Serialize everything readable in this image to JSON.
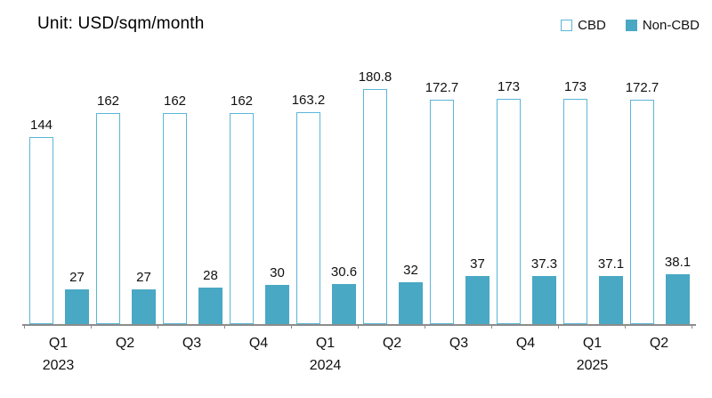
{
  "header": {
    "unit_label": "Unit: USD/sqm/month"
  },
  "legend": {
    "items": [
      {
        "label": "CBD",
        "swatch": "outline"
      },
      {
        "label": "Non-CBD",
        "swatch": "fill"
      }
    ]
  },
  "colors": {
    "bar_fill": "#49A8C4",
    "bar_outline": "#5AB6D8",
    "axis": "#8C8C8C",
    "text": "#111111"
  },
  "chart_data": {
    "type": "bar",
    "title": "",
    "unit": "USD/sqm/month",
    "categories": [
      "Q1",
      "Q2",
      "Q3",
      "Q4",
      "Q1",
      "Q2",
      "Q3",
      "Q4",
      "Q1",
      "Q2"
    ],
    "year_labels": [
      "2023",
      null,
      null,
      null,
      "2024",
      null,
      null,
      null,
      "2025",
      null
    ],
    "series": [
      {
        "name": "CBD",
        "style": "outline",
        "values": [
          144,
          162,
          162,
          162,
          163.2,
          180.8,
          172.7,
          173,
          173,
          172.7
        ]
      },
      {
        "name": "Non-CBD",
        "style": "fill",
        "values": [
          27,
          27,
          28,
          30,
          30.6,
          32,
          37,
          37.3,
          37.1,
          38.1
        ]
      }
    ],
    "ylim": [
      0,
      200
    ],
    "grid": false,
    "data_labels": true,
    "legend_position": "top-right"
  }
}
